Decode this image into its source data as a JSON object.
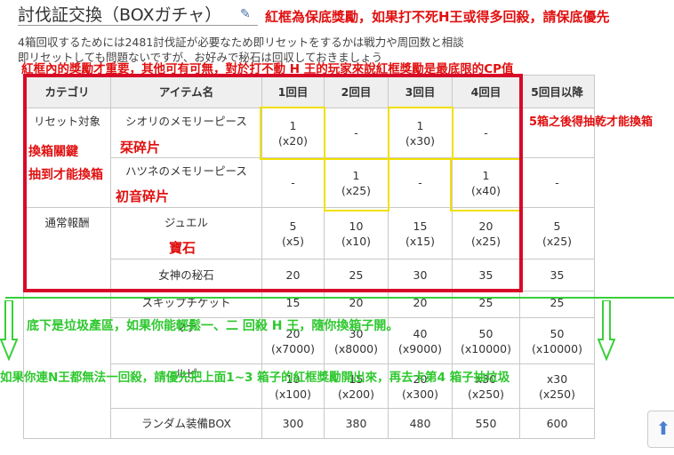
{
  "page": {
    "title": "討伐証交換（BOXガチャ）",
    "intro_line1": "4箱回収するためには2481討伐証が必要なため即リセットをするかは戦力や周回数と相談",
    "intro_line2": "即リセットしても問題ないですが、お好みで秘石は回収しておきましょう"
  },
  "annotations": {
    "top_red": "紅框為保底獎勵，如果打不死H王或得多回殺，請保底優先",
    "second_red": "紅框內的獎勵才重要，其他可有可無，對於打不動 H 王的玩家來說紅框獎勵是最底限的CP值",
    "right_red": "5箱之後得抽乾才能換箱",
    "key_box": "換箱關鍵",
    "key_box2": "抽到才能換箱",
    "shiori_cn": "栞碎片",
    "hatsune_cn": "初音碎片",
    "jewel_cn": "寶石",
    "green_1": "底下是垃圾產區，如果你能輕鬆一、二 回殺 H 王，隨你換箱子開。",
    "green_2": "如果你連N王都無法一回殺，請優先把上面1~3 箱子的紅框獎勵開出來，再去卡第4 箱子抽垃圾"
  },
  "table": {
    "headers": [
      "カテゴリ",
      "アイテム名",
      "1回目",
      "2回目",
      "3回目",
      "4回目",
      "5回目以降"
    ],
    "cat_reset": "リセット対象",
    "cat_normal": "通常報酬",
    "rows": [
      {
        "item": "シオリのメモリーピース",
        "c1a": "1",
        "c1b": "(x20)",
        "c2": "-",
        "c3a": "1",
        "c3b": "(x30)",
        "c4": "-",
        "c5": ""
      },
      {
        "item": "ハツネのメモリーピース",
        "c1": "-",
        "c2a": "1",
        "c2b": "(x25)",
        "c3": "-",
        "c4a": "1",
        "c4b": "(x40)",
        "c5": "-"
      },
      {
        "item": "ジュエル",
        "v": [
          [
            "5",
            "(x5)"
          ],
          [
            "10",
            "(x10)"
          ],
          [
            "15",
            "(x15)"
          ],
          [
            "20",
            "(x25)"
          ],
          [
            "5",
            "(x25)"
          ]
        ]
      },
      {
        "item": "女神の秘石",
        "v": [
          "20",
          "25",
          "30",
          "35",
          "35"
        ]
      },
      {
        "item": "スキップチケット",
        "v": [
          "15",
          "20",
          "20",
          "25",
          "25"
        ]
      },
      {
        "item": "マナ",
        "v": [
          [
            "20",
            "(x7000)"
          ],
          [
            "30",
            "(x8000)"
          ],
          [
            "40",
            "(x9000)"
          ],
          [
            "50",
            "(x10000)"
          ],
          [
            "50",
            "(x10000)"
          ]
        ]
      },
      {
        "item": "ルピ",
        "v": [
          [
            "10",
            "(x100)"
          ],
          [
            "15",
            "(x200)"
          ],
          [
            "20",
            "(x300)"
          ],
          [
            "x30",
            "(x250)"
          ],
          [
            "x30",
            "(x250)"
          ]
        ]
      },
      {
        "item": "ランダム装備BOX",
        "v": [
          "300",
          "380",
          "480",
          "550",
          "600"
        ]
      }
    ]
  },
  "colors": {
    "red_box": "#d80a28",
    "yellow_box": "#f2e000",
    "green": "#39d039",
    "header_bg": "#efefef"
  }
}
